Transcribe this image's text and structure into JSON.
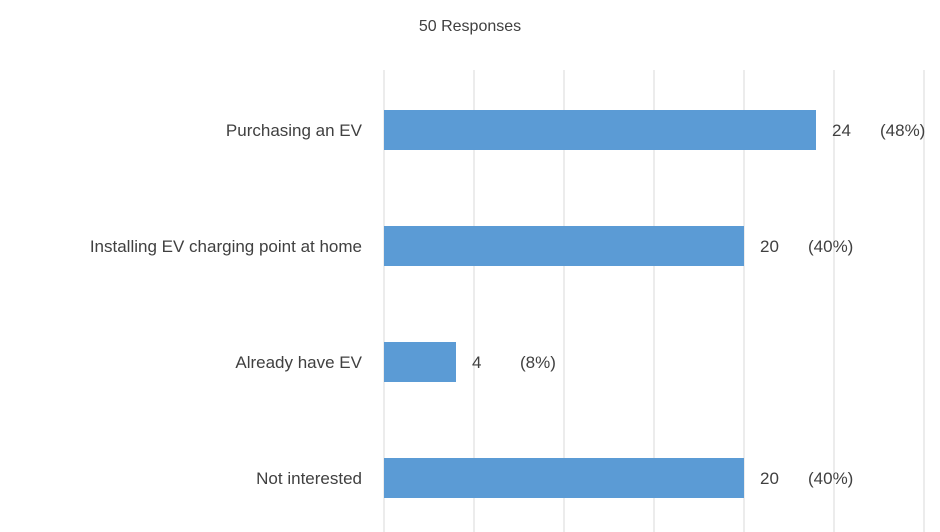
{
  "chart_data": {
    "type": "bar",
    "orientation": "horizontal",
    "title": "50 Responses",
    "categories": [
      "Purchasing an EV",
      "Installing EV charging point at home",
      "Already have EV",
      "Not interested"
    ],
    "values": [
      24,
      20,
      4,
      20
    ],
    "data_labels": [
      "24",
      "20",
      "4",
      "20"
    ],
    "percent_labels": [
      "(48%)",
      "(40%)",
      "(8%)",
      "(40%)"
    ],
    "xlim": [
      0,
      30
    ],
    "grid": true,
    "bar_color": "#5B9BD5",
    "grid_color": "#D9D9D9"
  }
}
